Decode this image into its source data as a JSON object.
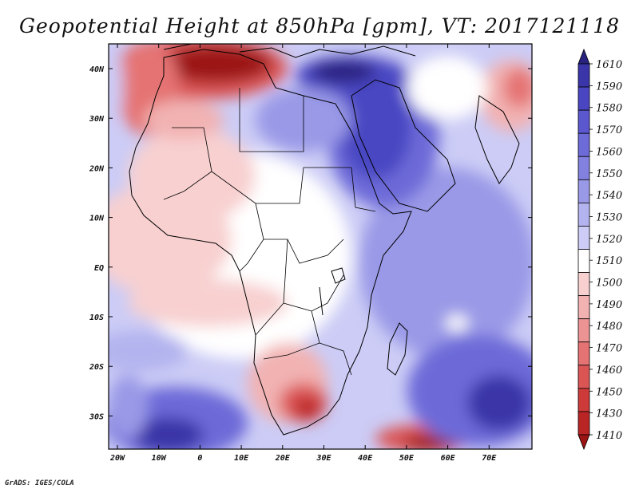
{
  "title": "Geopotential Height at 850hPa [gpm], VT: 2017121118",
  "credit": "GrADS: IGES/COLA",
  "axes": {
    "lat_labels": [
      "40N",
      "30N",
      "20N",
      "10N",
      "EQ",
      "10S",
      "20S",
      "30S"
    ],
    "lon_labels": [
      "20W",
      "10W",
      "0",
      "10E",
      "20E",
      "30E",
      "40E",
      "50E",
      "60E",
      "70E"
    ]
  },
  "colorbar": {
    "levels": [
      "1610",
      "1590",
      "1580",
      "1570",
      "1560",
      "1550",
      "1540",
      "1530",
      "1520",
      "1510",
      "1500",
      "1490",
      "1480",
      "1470",
      "1460",
      "1450",
      "1430",
      "1410"
    ],
    "colors": [
      "#29237f",
      "#3a35a8",
      "#4a46c2",
      "#5b58cf",
      "#6d6bd8",
      "#8281df",
      "#9a99e7",
      "#b3b3ef",
      "#ccccf6",
      "#ffffff",
      "#f8d0d0",
      "#f2b2b2",
      "#ec9393",
      "#e57373",
      "#db5555",
      "#cd3a3a",
      "#b92424",
      "#9c1414"
    ]
  },
  "colors": {
    "background": "#ffffff",
    "border_lines": "#000000"
  }
}
